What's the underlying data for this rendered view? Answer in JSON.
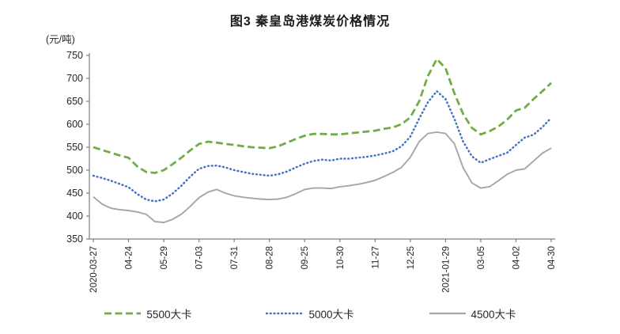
{
  "title": "图3 秦皇岛港煤炭价格情况",
  "y_axis_unit": "(元/吨)",
  "chart_data": {
    "type": "line",
    "title": "图3 秦皇岛港煤炭价格情况",
    "ylabel": "(元/吨)",
    "xlabel": "",
    "ylim": [
      350,
      750
    ],
    "y_ticks": [
      350,
      400,
      450,
      500,
      550,
      600,
      650,
      700,
      750
    ],
    "grid": false,
    "legend_position": "bottom",
    "x_tick_labels": [
      "2020-03-27",
      "04-24",
      "05-29",
      "07-03",
      "07-31",
      "08-28",
      "09-25",
      "10-30",
      "11-27",
      "12-25",
      "2021-01-29",
      "03-05",
      "04-02",
      "04-30"
    ],
    "tick_point_interval": 4,
    "n_points": 53,
    "series": [
      {
        "name": "5500大卡",
        "color": "#70AD47",
        "style": "dashed",
        "values": [
          550,
          544,
          538,
          532,
          527,
          508,
          496,
          494,
          500,
          513,
          527,
          543,
          557,
          562,
          560,
          557,
          555,
          552,
          550,
          549,
          548,
          552,
          560,
          568,
          575,
          579,
          579,
          578,
          578,
          580,
          582,
          584,
          586,
          590,
          593,
          600,
          615,
          650,
          705,
          742,
          722,
          668,
          622,
          592,
          578,
          585,
          595,
          610,
          630,
          636,
          655,
          672,
          690
        ]
      },
      {
        "name": "5000大卡",
        "color": "#4472C4",
        "style": "dotted",
        "values": [
          488,
          483,
          477,
          470,
          463,
          448,
          436,
          432,
          436,
          449,
          466,
          486,
          503,
          509,
          510,
          506,
          500,
          496,
          492,
          490,
          488,
          491,
          497,
          506,
          514,
          520,
          523,
          521,
          525,
          525,
          527,
          529,
          532,
          536,
          541,
          552,
          573,
          612,
          648,
          672,
          655,
          612,
          562,
          530,
          516,
          524,
          531,
          538,
          555,
          571,
          577,
          594,
          614
        ]
      },
      {
        "name": "4500大卡",
        "color": "#A6A6A6",
        "style": "solid",
        "values": [
          442,
          426,
          417,
          414,
          412,
          409,
          404,
          388,
          386,
          393,
          404,
          421,
          440,
          452,
          458,
          450,
          444,
          441,
          439,
          437,
          436,
          437,
          441,
          449,
          458,
          461,
          461,
          460,
          464,
          466,
          469,
          473,
          478,
          486,
          495,
          506,
          528,
          562,
          580,
          583,
          580,
          558,
          505,
          472,
          461,
          464,
          477,
          491,
          500,
          503,
          520,
          537,
          548
        ]
      }
    ]
  }
}
